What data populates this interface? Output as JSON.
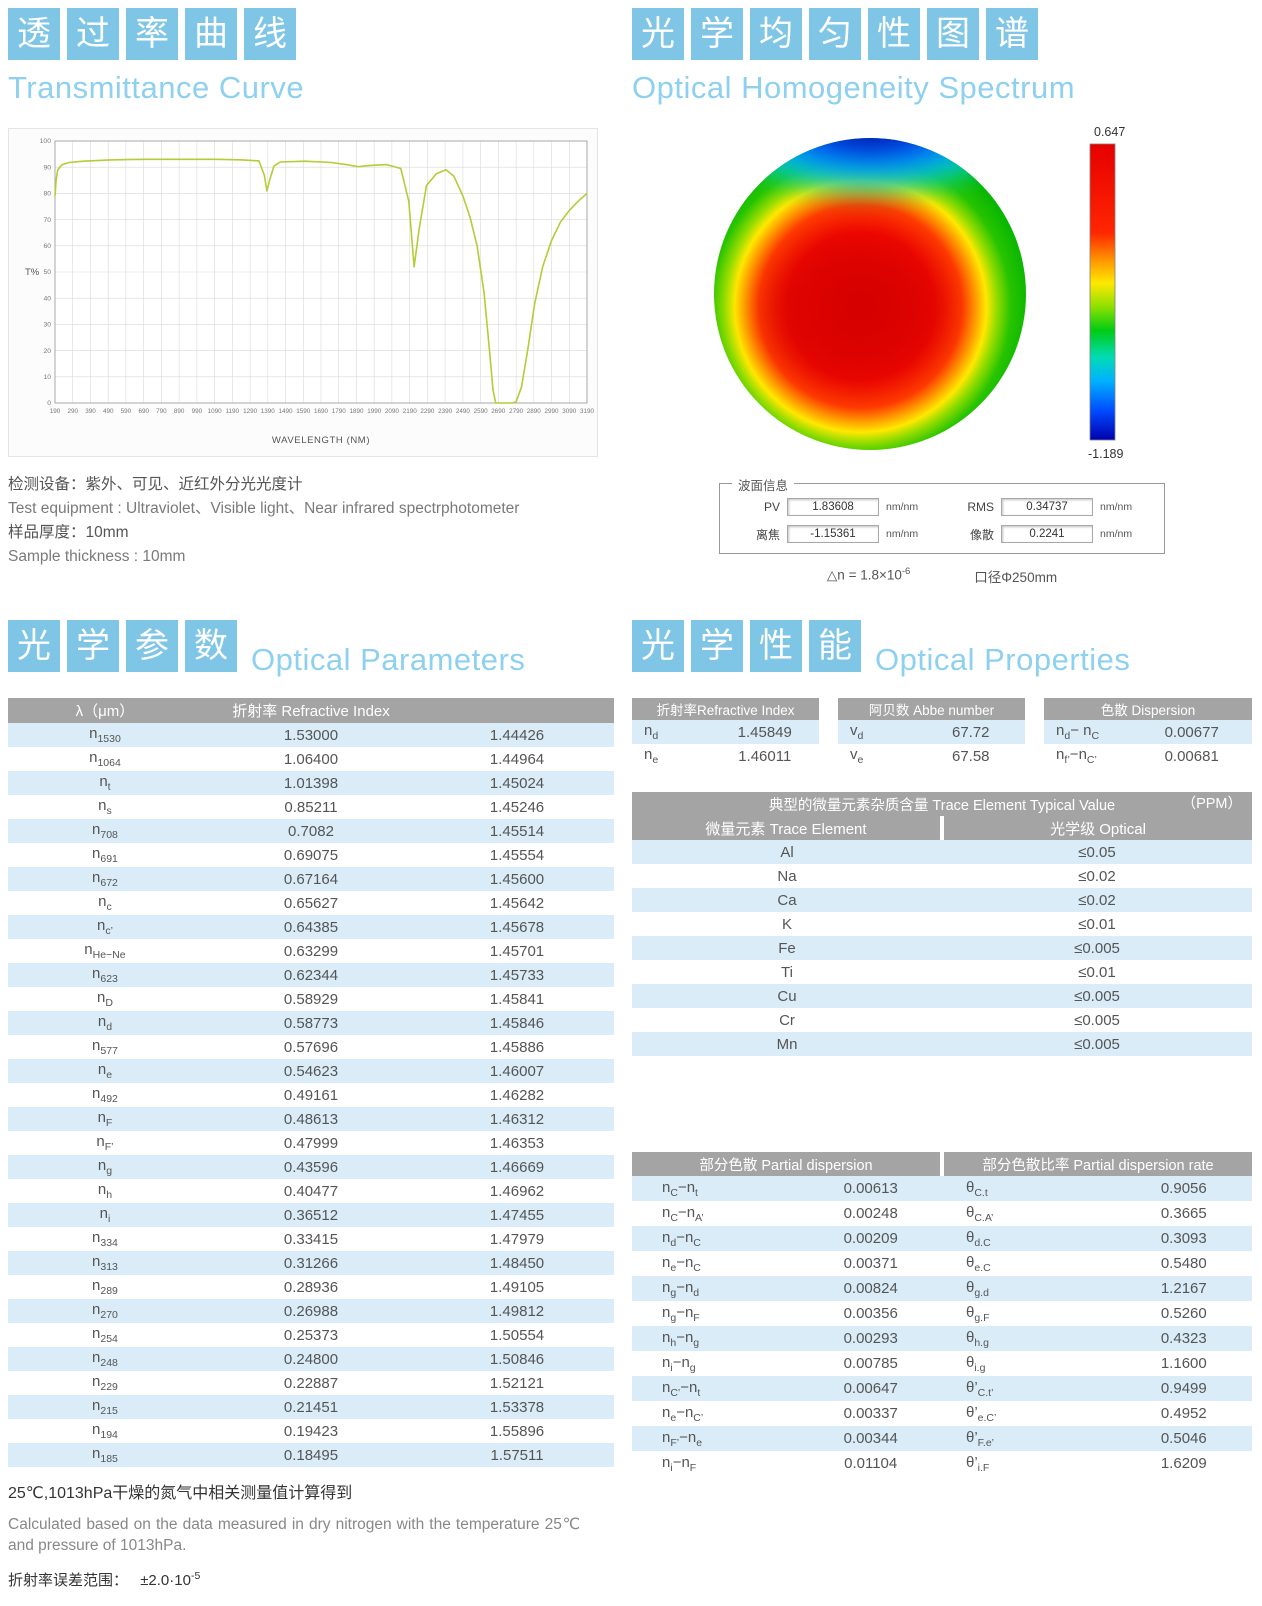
{
  "palette": {
    "accent_blue": "#7fc6e6",
    "title_blue": "#8dd0ef",
    "table_header_gray": "#a4a4a4",
    "row_blue": "#d9ecf7",
    "curve_green": "#b7cb36"
  },
  "transmittance": {
    "title_cn": "透过率曲线",
    "title_en": "Transmittance Curve",
    "notes": [
      "检测设备：紫外、可见、近红外分光光度计",
      "Test equipment : Ultraviolet、Visible light、Near infrared spectrphotometer",
      "样品厚度：10mm",
      "Sample thickness : 10mm"
    ]
  },
  "homogeneity": {
    "title_cn": "光学均匀性图谱",
    "title_en": "Optical Homogeneity Spectrum",
    "scale_max": "0.647",
    "scale_min": "-1.189",
    "wavefront_title": "波面信息",
    "wavefront": [
      {
        "label": "PV",
        "value": "1.83608",
        "unit": "nm/nm"
      },
      {
        "label": "RMS",
        "value": "0.34737",
        "unit": "nm/nm"
      },
      {
        "label": "离焦",
        "value": "-1.15361",
        "unit": "nm/nm"
      },
      {
        "label": "像散",
        "value": "0.2241",
        "unit": "nm/nm"
      }
    ],
    "delta_n": [
      "△n = 1.8×10",
      [
        "-6",
        2
      ]
    ],
    "aperture": "口径Φ250mm"
  },
  "parameters": {
    "title_cn": "光学参数",
    "title_en": "Optical Parameters",
    "col1": "λ（μm）",
    "col2": "折射率  Refractive Index",
    "rows": [
      {
        "sym": [
          "n",
          [
            "1530",
            1
          ]
        ],
        "wl": "1.53000",
        "n": "1.44426"
      },
      {
        "sym": [
          "n",
          [
            "1064",
            1
          ]
        ],
        "wl": "1.06400",
        "n": "1.44964"
      },
      {
        "sym": [
          "n",
          [
            "t",
            1
          ]
        ],
        "wl": "1.01398",
        "n": "1.45024"
      },
      {
        "sym": [
          "n",
          [
            "s",
            1
          ]
        ],
        "wl": "0.85211",
        "n": "1.45246"
      },
      {
        "sym": [
          "n",
          [
            "708",
            1
          ]
        ],
        "wl": "0.7082",
        "n": "1.45514"
      },
      {
        "sym": [
          "n",
          [
            "691",
            1
          ]
        ],
        "wl": "0.69075",
        "n": "1.45554"
      },
      {
        "sym": [
          "n",
          [
            "672",
            1
          ]
        ],
        "wl": "0.67164",
        "n": "1.45600"
      },
      {
        "sym": [
          "n",
          [
            "c",
            1
          ]
        ],
        "wl": "0.65627",
        "n": "1.45642"
      },
      {
        "sym": [
          "n",
          [
            "c’",
            1
          ]
        ],
        "wl": "0.64385",
        "n": "1.45678"
      },
      {
        "sym": [
          "n",
          [
            "He−Ne",
            1
          ]
        ],
        "wl": "0.63299",
        "n": "1.45701"
      },
      {
        "sym": [
          "n",
          [
            "623",
            1
          ]
        ],
        "wl": "0.62344",
        "n": "1.45733"
      },
      {
        "sym": [
          "n",
          [
            "D",
            1
          ]
        ],
        "wl": "0.58929",
        "n": "1.45841"
      },
      {
        "sym": [
          "n",
          [
            "d",
            1
          ]
        ],
        "wl": "0.58773",
        "n": "1.45846"
      },
      {
        "sym": [
          "n",
          [
            "577",
            1
          ]
        ],
        "wl": "0.57696",
        "n": "1.45886"
      },
      {
        "sym": [
          "n",
          [
            "e",
            1
          ]
        ],
        "wl": "0.54623",
        "n": "1.46007"
      },
      {
        "sym": [
          "n",
          [
            "492",
            1
          ]
        ],
        "wl": "0.49161",
        "n": "1.46282"
      },
      {
        "sym": [
          "n",
          [
            "F",
            1
          ]
        ],
        "wl": "0.48613",
        "n": "1.46312"
      },
      {
        "sym": [
          "n",
          [
            "F’",
            1
          ]
        ],
        "wl": "0.47999",
        "n": "1.46353"
      },
      {
        "sym": [
          "n",
          [
            "g",
            1
          ]
        ],
        "wl": "0.43596",
        "n": "1.46669"
      },
      {
        "sym": [
          "n",
          [
            "h",
            1
          ]
        ],
        "wl": "0.40477",
        "n": "1.46962"
      },
      {
        "sym": [
          "n",
          [
            "i",
            1
          ]
        ],
        "wl": "0.36512",
        "n": "1.47455"
      },
      {
        "sym": [
          "n",
          [
            "334",
            1
          ]
        ],
        "wl": "0.33415",
        "n": "1.47979"
      },
      {
        "sym": [
          "n",
          [
            "313",
            1
          ]
        ],
        "wl": "0.31266",
        "n": "1.48450"
      },
      {
        "sym": [
          "n",
          [
            "289",
            1
          ]
        ],
        "wl": "0.28936",
        "n": "1.49105"
      },
      {
        "sym": [
          "n",
          [
            "270",
            1
          ]
        ],
        "wl": "0.26988",
        "n": "1.49812"
      },
      {
        "sym": [
          "n",
          [
            "254",
            1
          ]
        ],
        "wl": "0.25373",
        "n": "1.50554"
      },
      {
        "sym": [
          "n",
          [
            "248",
            1
          ]
        ],
        "wl": "0.24800",
        "n": "1.50846"
      },
      {
        "sym": [
          "n",
          [
            "229",
            1
          ]
        ],
        "wl": "0.22887",
        "n": "1.52121"
      },
      {
        "sym": [
          "n",
          [
            "215",
            1
          ]
        ],
        "wl": "0.21451",
        "n": "1.53378"
      },
      {
        "sym": [
          "n",
          [
            "194",
            1
          ]
        ],
        "wl": "0.19423",
        "n": "1.55896"
      },
      {
        "sym": [
          "n",
          [
            "185",
            1
          ]
        ],
        "wl": "0.18495",
        "n": "1.57511"
      }
    ]
  },
  "properties": {
    "title_cn": "光学性能",
    "title_en": "Optical Properties",
    "mini": [
      {
        "header": "折射率Refractive Index",
        "rows": [
          {
            "l": [
              "n",
              [
                "d",
                1
              ]
            ],
            "v": "1.45849"
          },
          {
            "l": [
              "n",
              [
                "e",
                1
              ]
            ],
            "v": "1.46011"
          }
        ]
      },
      {
        "header": "阿贝数 Abbe number",
        "rows": [
          {
            "l": [
              "v",
              [
                "d",
                1
              ]
            ],
            "v": "67.72"
          },
          {
            "l": [
              "v",
              [
                "e",
                1
              ]
            ],
            "v": "67.58"
          }
        ]
      },
      {
        "header": "色散 Dispersion",
        "rows": [
          {
            "l": [
              "n",
              [
                "d",
                1
              ],
              "− ",
              "n",
              [
                "C",
                1
              ]
            ],
            "v": "0.00677"
          },
          {
            "l": [
              "n",
              [
                "f’",
                1
              ],
              "−",
              "n",
              [
                "C’",
                1
              ]
            ],
            "v": "0.00681"
          }
        ]
      }
    ],
    "trace": {
      "header": "典型的微量元素杂质含量  Trace Element Typical Value",
      "header_ppm": "（PPM）",
      "col1": "微量元素 Trace Element",
      "col2": "光学级 Optical",
      "rows": [
        [
          "Al",
          "≤0.05"
        ],
        [
          "Na",
          "≤0.02"
        ],
        [
          "Ca",
          "≤0.02"
        ],
        [
          "K",
          "≤0.01"
        ],
        [
          "Fe",
          "≤0.005"
        ],
        [
          "Ti",
          "≤0.01"
        ],
        [
          "Cu",
          "≤0.005"
        ],
        [
          "Cr",
          "≤0.005"
        ],
        [
          "Mn",
          "≤0.005"
        ]
      ]
    },
    "partial": {
      "col1": "部分色散 Partial dispersion",
      "col2": "部分色散比率 Partial dispersion rate",
      "rows": [
        {
          "l": [
            "n",
            [
              "C",
              1
            ],
            "−",
            "n",
            [
              "t",
              1
            ]
          ],
          "lv": "0.00613",
          "r": [
            "θ",
            [
              "C.t",
              1
            ]
          ],
          "rv": "0.9056"
        },
        {
          "l": [
            "n",
            [
              "C",
              1
            ],
            "−",
            "n",
            [
              "A’",
              1
            ]
          ],
          "lv": "0.00248",
          "r": [
            "θ",
            [
              "C.A’",
              1
            ]
          ],
          "rv": "0.3665"
        },
        {
          "l": [
            "n",
            [
              "d",
              1
            ],
            "−",
            "n",
            [
              "C",
              1
            ]
          ],
          "lv": "0.00209",
          "r": [
            "θ",
            [
              "d.C",
              1
            ]
          ],
          "rv": "0.3093"
        },
        {
          "l": [
            "n",
            [
              "e",
              1
            ],
            "−",
            "n",
            [
              "C",
              1
            ]
          ],
          "lv": "0.00371",
          "r": [
            "θ",
            [
              "e.C",
              1
            ]
          ],
          "rv": "0.5480"
        },
        {
          "l": [
            "n",
            [
              "g",
              1
            ],
            "−",
            "n",
            [
              "d",
              1
            ]
          ],
          "lv": "0.00824",
          "r": [
            "θ",
            [
              "g.d",
              1
            ]
          ],
          "rv": "1.2167"
        },
        {
          "l": [
            "n",
            [
              "g",
              1
            ],
            "−",
            "n",
            [
              "F",
              1
            ]
          ],
          "lv": "0.00356",
          "r": [
            "θ",
            [
              "g.F",
              1
            ]
          ],
          "rv": "0.5260"
        },
        {
          "l": [
            "n",
            [
              "h",
              1
            ],
            "−",
            "n",
            [
              "g",
              1
            ]
          ],
          "lv": "0.00293",
          "r": [
            "θ",
            [
              "h.g",
              1
            ]
          ],
          "rv": "0.4323"
        },
        {
          "l": [
            "n",
            [
              "i",
              1
            ],
            "−",
            "n",
            [
              "g",
              1
            ]
          ],
          "lv": "0.00785",
          "r": [
            "θ",
            [
              "i.g",
              1
            ]
          ],
          "rv": "1.1600"
        },
        {
          "l": [
            "n",
            [
              "C’",
              1
            ],
            "−",
            "n",
            [
              "t",
              1
            ]
          ],
          "lv": "0.00647",
          "r": [
            "θ’",
            [
              "C.t’",
              1
            ]
          ],
          "rv": "0.9499"
        },
        {
          "l": [
            "n",
            [
              "e",
              1
            ],
            "−",
            "n",
            [
              "C’",
              1
            ]
          ],
          "lv": "0.00337",
          "r": [
            "θ’",
            [
              "e.C’",
              1
            ]
          ],
          "rv": "0.4952"
        },
        {
          "l": [
            "n",
            [
              "F’",
              1
            ],
            "−",
            "n",
            [
              "e",
              1
            ]
          ],
          "lv": "0.00344",
          "r": [
            "θ’",
            [
              "F.e’",
              1
            ]
          ],
          "rv": "0.5046"
        },
        {
          "l": [
            "n",
            [
              "i",
              1
            ],
            "−",
            "n",
            [
              "F",
              1
            ]
          ],
          "lv": "0.01104",
          "r": [
            "θ’",
            [
              "i.F",
              1
            ]
          ],
          "rv": "1.6209"
        }
      ]
    }
  },
  "footer": {
    "note_cn": "25℃,1013hPa干燥的氮气中相关测量值计算得到",
    "note_en": "Calculated based on the data measured in dry nitrogen with the temperature 25℃ and pressure of 1013hPa.",
    "error_label": "折射率误差范围：",
    "error_value": [
      "±2.0·10",
      [
        "-5",
        2
      ]
    ]
  },
  "chart_data": [
    {
      "type": "line",
      "title": "Transmittance Curve",
      "xlabel": "WAVELENGTH (NM)",
      "ylabel": "T%",
      "xlim": [
        190,
        3190
      ],
      "ylim": [
        0,
        100
      ],
      "grid": true,
      "line_color": "#b7cb36",
      "xticks": [
        190,
        290,
        390,
        490,
        590,
        690,
        790,
        890,
        990,
        1090,
        1190,
        1290,
        1390,
        1490,
        1590,
        1690,
        1790,
        1890,
        1990,
        2090,
        2190,
        2290,
        2390,
        2490,
        2590,
        2690,
        2790,
        2890,
        2990,
        3090,
        3190
      ],
      "yticks": [
        0,
        10,
        20,
        30,
        40,
        50,
        60,
        70,
        80,
        90,
        100
      ],
      "series": [
        {
          "name": "T%",
          "points": [
            [
              190,
              79
            ],
            [
              196,
              85
            ],
            [
              205,
              89
            ],
            [
              230,
              91
            ],
            [
              270,
              91.8
            ],
            [
              350,
              92.3
            ],
            [
              500,
              92.8
            ],
            [
              700,
              93
            ],
            [
              900,
              93
            ],
            [
              1100,
              93
            ],
            [
              1250,
              92.8
            ],
            [
              1340,
              92.4
            ],
            [
              1370,
              87
            ],
            [
              1385,
              81
            ],
            [
              1400,
              85
            ],
            [
              1425,
              90.5
            ],
            [
              1460,
              92
            ],
            [
              1600,
              92.3
            ],
            [
              1750,
              91.8
            ],
            [
              1850,
              90.8
            ],
            [
              1900,
              90.2
            ],
            [
              1960,
              90.6
            ],
            [
              2060,
              91
            ],
            [
              2140,
              89.5
            ],
            [
              2185,
              77
            ],
            [
              2215,
              52
            ],
            [
              2245,
              67
            ],
            [
              2285,
              83
            ],
            [
              2340,
              87.5
            ],
            [
              2395,
              89
            ],
            [
              2440,
              86.5
            ],
            [
              2490,
              79
            ],
            [
              2530,
              71
            ],
            [
              2570,
              60
            ],
            [
              2610,
              42
            ],
            [
              2640,
              20
            ],
            [
              2660,
              5
            ],
            [
              2675,
              0
            ],
            [
              2770,
              0
            ],
            [
              2790,
              0.5
            ],
            [
              2820,
              6
            ],
            [
              2855,
              20
            ],
            [
              2895,
              38
            ],
            [
              2940,
              52
            ],
            [
              2990,
              62
            ],
            [
              3040,
              69
            ],
            [
              3090,
              73.5
            ],
            [
              3140,
              77
            ],
            [
              3190,
              80
            ]
          ]
        }
      ]
    },
    {
      "type": "heatmap",
      "title": "Optical Homogeneity Spectrum",
      "colorbar": {
        "max": 0.647,
        "min": -1.189
      },
      "wavefront": {
        "PV": "1.83608",
        "RMS": "0.34737",
        "defocus": "-1.15361",
        "astigmatism": "0.2241",
        "unit": "nm/nm"
      },
      "delta_n": "1.8×10^-6",
      "aperture": "Φ250mm",
      "legend_position": "right"
    }
  ]
}
